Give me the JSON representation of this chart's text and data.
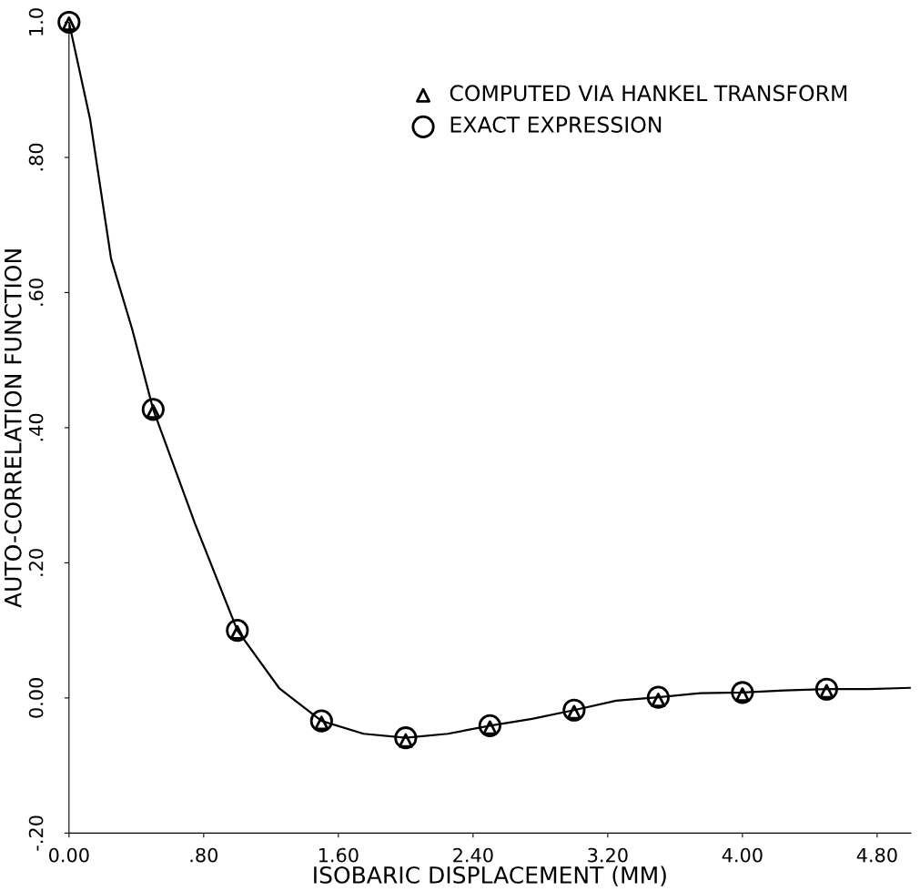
{
  "chart_data": {
    "type": "scatter",
    "xlabel": "ISOBARIC DISPLACEMENT (MM)",
    "ylabel": "AUTO-CORRELATION FUNCTION",
    "xlim": [
      0,
      5.0
    ],
    "xticks": [
      {
        "value": 0,
        "label": "0.00"
      },
      {
        "value": 0.8,
        "label": ".80"
      },
      {
        "value": 1.6,
        "label": "1.60"
      },
      {
        "value": 2.4,
        "label": "2.40"
      },
      {
        "value": 3.2,
        "label": "3.20"
      },
      {
        "value": 4.0,
        "label": "4.00"
      },
      {
        "value": 4.8,
        "label": "4.80"
      }
    ],
    "ylim": [
      -0.2,
      1.0
    ],
    "yticks": [
      {
        "value": -0.2,
        "label": "-.20"
      },
      {
        "value": 0,
        "label": "0.00"
      },
      {
        "value": 0.2,
        "label": ".20"
      },
      {
        "value": 0.4,
        "label": ".40"
      },
      {
        "value": 0.6,
        "label": ".60"
      },
      {
        "value": 0.8,
        "label": ".80"
      },
      {
        "value": 1.0,
        "label": "1.0"
      }
    ],
    "grid": false,
    "legend": "top right",
    "series": [
      {
        "name": "COMPUTED VIA HANKEL TRANSFORM",
        "color": "#000000",
        "marker": "triangle",
        "x": [
          0,
          0.5,
          1.0,
          1.5,
          2.0,
          2.5,
          3.0,
          3.5,
          4.0,
          4.5
        ],
        "values": [
          0.998,
          0.424,
          0.097,
          -0.037,
          -0.063,
          -0.044,
          -0.021,
          -0.003,
          0.005,
          0.01
        ]
      },
      {
        "name": "EXACT EXPRESSION",
        "color": "#000000",
        "marker": "circle",
        "x": [
          0,
          0.5,
          1.0,
          1.5,
          2.0,
          2.5,
          3.0,
          3.5,
          4.0,
          4.5
        ],
        "values": [
          1.0,
          0.427,
          0.1,
          -0.034,
          -0.059,
          -0.041,
          -0.018,
          0.001,
          0.008,
          0.013
        ]
      },
      {
        "type": "line",
        "color": "#000000",
        "marker": "none",
        "line_style": "solid",
        "x": [
          0,
          0.125,
          0.25,
          0.375,
          0.5,
          0.75,
          1.0,
          1.25,
          1.5,
          1.75,
          2.0,
          2.25,
          2.5,
          2.75,
          3.0,
          3.25,
          3.5,
          3.75,
          4.0,
          4.25,
          4.5,
          4.75,
          5.0
        ],
        "values": [
          1.0,
          0.857,
          0.65,
          0.546,
          0.427,
          0.257,
          0.1,
          0.014,
          -0.034,
          -0.053,
          -0.059,
          -0.053,
          -0.041,
          -0.031,
          -0.018,
          -0.004,
          0.001,
          0.007,
          0.008,
          0.011,
          0.013,
          0.013,
          0.015
        ]
      }
    ]
  }
}
